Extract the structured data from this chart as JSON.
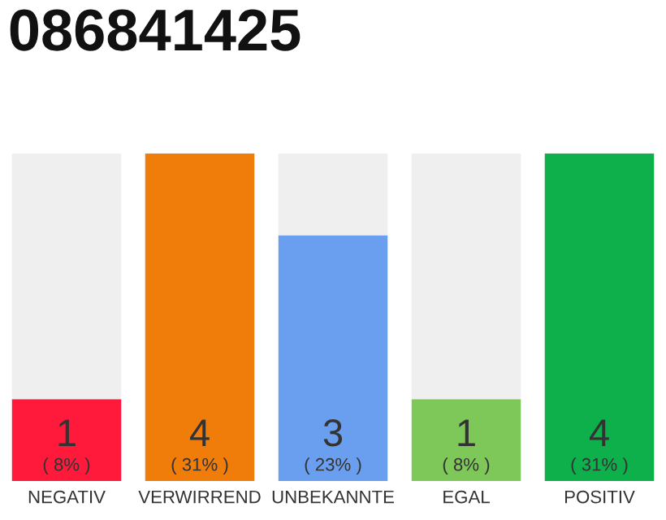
{
  "chart_data": {
    "type": "bar",
    "title": "086841425",
    "categories": [
      "NEGATIV",
      "VERWIRREND",
      "UNBEKANNTE",
      "EGAL",
      "POSITIV"
    ],
    "stacked": true,
    "series": [
      {
        "colors": [
          "#ff1a3c",
          "#f07d0a",
          "#6a9ff0",
          "#7ec85a",
          "#0db04a"
        ],
        "values": [
          1,
          4,
          3,
          1,
          4
        ],
        "value_labels": [
          "1\n( 8% )",
          "4\n( 31% )",
          "3\n( 23% )",
          "1\n( 8% )",
          "4\n( 31% )"
        ]
      },
      {
        "color": "#efefef",
        "values": [
          3,
          0,
          1,
          3,
          0
        ]
      }
    ],
    "tick_labels": "x",
    "grid": false,
    "legend": false
  }
}
